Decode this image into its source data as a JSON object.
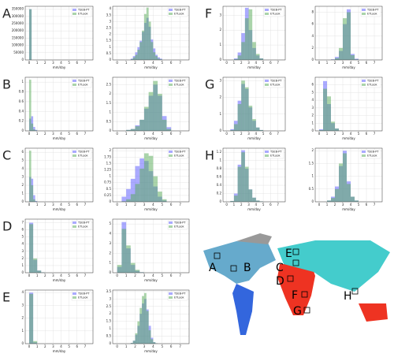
{
  "panel_labels": [
    "A",
    "B",
    "C",
    "D",
    "E",
    "F",
    "G",
    "H"
  ],
  "chart_data": [
    {
      "type": "histogram",
      "bins": [
        0,
        0.3
      ],
      "series": [
        {
          "name": "TSEB-PT",
          "color": "#5555ff",
          "values": [
            350000
          ]
        },
        {
          "name": "ETLook",
          "color": "#55aa55",
          "values": [
            350000
          ]
        }
      ],
      "xlim": [
        -0.5,
        8
      ],
      "ylim": [
        0,
        370000
      ],
      "xticks": [
        0,
        1,
        2,
        3,
        4,
        5,
        6,
        7
      ],
      "yticks": [
        0,
        50000,
        100000,
        150000,
        200000,
        250000,
        300000,
        350000
      ],
      "xlabel": "mm/day",
      "grid": true,
      "legend": "upper right"
    },
    {
      "type": "histogram",
      "bins": [
        1.5,
        1.75,
        2,
        2.25,
        2.5,
        2.75,
        3,
        3.25,
        3.5,
        3.75,
        4,
        4.25,
        4.5,
        4.75,
        5
      ],
      "series": [
        {
          "name": "TSEB-PT",
          "color": "#5555ff",
          "values": [
            0.1,
            0.3,
            0.6,
            1.0,
            1.5,
            2.2,
            2.9,
            3.3,
            2.6,
            1.6,
            0.9,
            0.4,
            0.2,
            0.1
          ]
        },
        {
          "name": "ETLook",
          "color": "#55aa55",
          "values": [
            0.05,
            0.2,
            0.4,
            0.8,
            1.4,
            2.3,
            3.6,
            4.1,
            3.0,
            1.4,
            0.6,
            0.3,
            0.1,
            0.05
          ]
        }
      ],
      "xlim": [
        -0.5,
        8
      ],
      "ylim": [
        0,
        4.2
      ],
      "xticks": [
        0,
        1,
        2,
        3,
        4,
        5,
        6,
        7
      ],
      "yticks": [
        0,
        0.5,
        1,
        1.5,
        2,
        2.5,
        3,
        3.5,
        4
      ],
      "xlabel": "mm/day",
      "grid": true,
      "legend": "upper right"
    },
    {
      "type": "histogram",
      "bins": [
        0,
        0.25,
        0.5,
        0.75,
        1
      ],
      "series": [
        {
          "name": "TSEB-PT",
          "color": "#5555ff",
          "values": [
            0.25,
            0.3,
            0.08,
            0.02
          ]
        },
        {
          "name": "ETLook",
          "color": "#55aa55",
          "values": [
            1.05,
            0.15,
            0.03,
            0.01
          ]
        }
      ],
      "xlim": [
        -0.5,
        8
      ],
      "ylim": [
        0,
        1.1
      ],
      "xticks": [
        0,
        1,
        2,
        3,
        4,
        5,
        6,
        7
      ],
      "yticks": [
        0,
        0.2,
        0.4,
        0.6,
        0.8,
        1
      ],
      "xlabel": "mm/day",
      "grid": true,
      "legend": "upper right"
    },
    {
      "type": "histogram",
      "bins": [
        1,
        1.5,
        2,
        2.5,
        3,
        3.5,
        4,
        4.5,
        5,
        5.5,
        6
      ],
      "series": [
        {
          "name": "TSEB-PT",
          "color": "#5555ff",
          "values": [
            0.05,
            0.1,
            0.3,
            0.6,
            1.2,
            1.9,
            2.5,
            1.9,
            0.8,
            0.2
          ]
        },
        {
          "name": "ETLook",
          "color": "#55aa55",
          "values": [
            0.05,
            0.1,
            0.25,
            0.6,
            1.3,
            2.1,
            2.7,
            2.0,
            0.6,
            0.1
          ]
        }
      ],
      "xlim": [
        -0.5,
        8
      ],
      "ylim": [
        0,
        2.9
      ],
      "xticks": [
        0,
        1,
        2,
        3,
        4,
        5,
        6,
        7
      ],
      "yticks": [
        0,
        0.5,
        1,
        1.5,
        2,
        2.5
      ],
      "xlabel": "mm/day",
      "grid": true,
      "legend": "upper right"
    },
    {
      "type": "histogram",
      "bins": [
        0,
        0.25,
        0.5,
        0.75,
        1
      ],
      "series": [
        {
          "name": "TSEB-PT",
          "color": "#5555ff",
          "values": [
            3.0,
            2.8,
            0.8,
            0.1
          ]
        },
        {
          "name": "ETLook",
          "color": "#55aa55",
          "values": [
            6.2,
            2.0,
            0.3,
            0.05
          ]
        }
      ],
      "xlim": [
        -0.5,
        8
      ],
      "ylim": [
        0,
        6.5
      ],
      "xticks": [
        0,
        1,
        2,
        3,
        4,
        5,
        6,
        7
      ],
      "yticks": [
        0,
        1,
        2,
        3,
        4,
        5,
        6
      ],
      "xlabel": "mm/day",
      "grid": true,
      "legend": "upper right"
    },
    {
      "type": "histogram",
      "bins": [
        0.5,
        1,
        1.5,
        2,
        2.5,
        3,
        3.5,
        4,
        4.5,
        5,
        5.5
      ],
      "series": [
        {
          "name": "TSEB-PT",
          "color": "#5555ff",
          "values": [
            0.2,
            0.5,
            0.9,
            1.4,
            1.7,
            1.6,
            1.2,
            0.6,
            0.2,
            0.05
          ]
        },
        {
          "name": "ETLook",
          "color": "#55aa55",
          "values": [
            0.02,
            0.1,
            0.3,
            0.7,
            1.3,
            1.9,
            1.8,
            1.0,
            0.4,
            0.1
          ]
        }
      ],
      "xlim": [
        -0.5,
        8
      ],
      "ylim": [
        0,
        2.1
      ],
      "xticks": [
        0,
        1,
        2,
        3,
        4,
        5,
        6,
        7
      ],
      "yticks": [
        0,
        0.25,
        0.5,
        0.75,
        1,
        1.25,
        1.5,
        1.75,
        2
      ],
      "xlabel": "mm/day",
      "grid": true,
      "legend": "upper right"
    },
    {
      "type": "histogram",
      "bins": [
        0,
        0.5,
        1,
        1.5,
        2
      ],
      "series": [
        {
          "name": "TSEB-PT",
          "color": "#5555ff",
          "values": [
            7.0,
            1.8,
            0.3,
            0.05
          ]
        },
        {
          "name": "ETLook",
          "color": "#55aa55",
          "values": [
            6.8,
            2.0,
            0.3,
            0.05
          ]
        }
      ],
      "xlim": [
        -0.5,
        8
      ],
      "ylim": [
        0,
        7.5
      ],
      "xticks": [
        0,
        1,
        2,
        3,
        4,
        5,
        6,
        7
      ],
      "yticks": [
        0,
        1,
        2,
        3,
        4,
        5,
        6,
        7
      ],
      "xlabel": "mm/day",
      "grid": true,
      "legend": "upper right"
    },
    {
      "type": "histogram",
      "bins": [
        0,
        0.5,
        1,
        1.5,
        2,
        2.5,
        3
      ],
      "series": [
        {
          "name": "TSEB-PT",
          "color": "#5555ff",
          "values": [
            0.6,
            5.2,
            2.5,
            0.8,
            0.2,
            0.05
          ]
        },
        {
          "name": "ETLook",
          "color": "#55aa55",
          "values": [
            0.8,
            4.5,
            2.8,
            1.0,
            0.3,
            0.05
          ]
        }
      ],
      "xlim": [
        -0.5,
        8
      ],
      "ylim": [
        0,
        5.5
      ],
      "xticks": [
        0,
        1,
        2,
        3,
        4,
        5,
        6,
        7
      ],
      "yticks": [
        0,
        1,
        2,
        3,
        4,
        5
      ],
      "xlabel": "mm/day",
      "grid": true,
      "legend": "upper right"
    },
    {
      "type": "histogram",
      "bins": [
        0,
        0.5,
        1
      ],
      "series": [
        {
          "name": "TSEB-PT",
          "color": "#5555ff",
          "values": [
            4.0,
            0.1
          ]
        },
        {
          "name": "ETLook",
          "color": "#55aa55",
          "values": [
            3.9,
            0.2
          ]
        }
      ],
      "xlim": [
        -0.5,
        8
      ],
      "ylim": [
        0,
        4.2
      ],
      "xticks": [
        0,
        1,
        2,
        3,
        4,
        5,
        6,
        7
      ],
      "yticks": [
        0,
        1,
        2,
        3,
        4
      ],
      "xlabel": "mm/day",
      "grid": true,
      "legend": "upper right"
    },
    {
      "type": "histogram",
      "bins": [
        1.5,
        1.75,
        2,
        2.25,
        2.5,
        2.75,
        3,
        3.25,
        3.5,
        3.75,
        4,
        4.25,
        4.5
      ],
      "series": [
        {
          "name": "TSEB-PT",
          "color": "#5555ff",
          "values": [
            0.05,
            0.2,
            0.6,
            1.2,
            2.0,
            2.7,
            3.0,
            2.3,
            1.2,
            0.4,
            0.1,
            0.02
          ]
        },
        {
          "name": "ETLook",
          "color": "#55aa55",
          "values": [
            0.05,
            0.2,
            0.7,
            1.5,
            2.4,
            3.2,
            3.4,
            2.2,
            0.9,
            0.3,
            0.1,
            0.02
          ]
        }
      ],
      "xlim": [
        -0.5,
        8
      ],
      "ylim": [
        0,
        3.6
      ],
      "xticks": [
        0,
        1,
        2,
        3,
        4,
        5,
        6,
        7
      ],
      "yticks": [
        0,
        0.5,
        1,
        1.5,
        2,
        2.5,
        3,
        3.5
      ],
      "xlabel": "mm/day",
      "grid": true,
      "legend": "upper right"
    },
    {
      "type": "histogram",
      "bins": [
        1,
        1.5,
        2,
        2.5,
        3,
        3.5,
        4,
        4.5,
        5
      ],
      "series": [
        {
          "name": "TSEB-PT",
          "color": "#5555ff",
          "values": [
            0.1,
            0.5,
            1.8,
            3.5,
            2.0,
            0.8,
            0.3,
            0.1
          ]
        },
        {
          "name": "ETLook",
          "color": "#55aa55",
          "values": [
            0.05,
            0.3,
            1.2,
            2.8,
            3.4,
            1.2,
            0.4,
            0.1
          ]
        }
      ],
      "xlim": [
        -0.5,
        8
      ],
      "ylim": [
        0,
        3.6
      ],
      "xticks": [
        0,
        1,
        2,
        3,
        4,
        5,
        6,
        7
      ],
      "yticks": [
        0,
        1,
        2,
        3
      ],
      "xlabel": "mm/day",
      "grid": true,
      "legend": "upper right"
    },
    {
      "type": "histogram",
      "bins": [
        1.5,
        2,
        2.5,
        3,
        3.5,
        4,
        4.5,
        5
      ],
      "series": [
        {
          "name": "TSEB-PT",
          "color": "#5555ff",
          "values": [
            0.1,
            0.5,
            1.5,
            6.0,
            8.5,
            1.0,
            0.2
          ]
        },
        {
          "name": "ETLook",
          "color": "#55aa55",
          "values": [
            0.05,
            0.3,
            2.0,
            7.0,
            8.0,
            0.8,
            0.1
          ]
        }
      ],
      "xlim": [
        -0.5,
        8
      ],
      "ylim": [
        0,
        9
      ],
      "xticks": [
        0,
        1,
        2,
        3,
        4,
        5,
        6,
        7
      ],
      "yticks": [
        0,
        2,
        4,
        6,
        8
      ],
      "xlabel": "mm/day",
      "grid": true,
      "legend": "upper right"
    },
    {
      "type": "histogram",
      "bins": [
        0.5,
        1,
        1.5,
        2,
        2.5,
        3,
        3.5,
        4,
        4.5,
        5
      ],
      "series": [
        {
          "name": "TSEB-PT",
          "color": "#5555ff",
          "values": [
            0.1,
            0.6,
            1.8,
            2.8,
            2.5,
            1.4,
            0.6,
            0.2,
            0.05
          ]
        },
        {
          "name": "ETLook",
          "color": "#55aa55",
          "values": [
            0.05,
            0.4,
            1.6,
            3.0,
            2.6,
            1.5,
            0.7,
            0.2,
            0.05
          ]
        }
      ],
      "xlim": [
        -0.5,
        8
      ],
      "ylim": [
        0,
        3.2
      ],
      "xticks": [
        0,
        1,
        2,
        3,
        4,
        5,
        6,
        7
      ],
      "yticks": [
        0,
        1,
        2,
        3
      ],
      "xlabel": "mm/day",
      "grid": true,
      "legend": "upper right"
    },
    {
      "type": "histogram",
      "bins": [
        0,
        0.5,
        1,
        1.5,
        2,
        2.5,
        3
      ],
      "series": [
        {
          "name": "TSEB-PT",
          "color": "#5555ff",
          "values": [
            0.2,
            6.5,
            3.5,
            1.0,
            0.3,
            0.05
          ]
        },
        {
          "name": "ETLook",
          "color": "#55aa55",
          "values": [
            0.1,
            5.5,
            4.5,
            1.2,
            0.3,
            0.05
          ]
        }
      ],
      "xlim": [
        -0.5,
        8
      ],
      "ylim": [
        0,
        7
      ],
      "xticks": [
        0,
        1,
        2,
        3,
        4,
        5,
        6,
        7
      ],
      "yticks": [
        0,
        1,
        2,
        3,
        4,
        5,
        6
      ],
      "xlabel": "mm/day",
      "grid": true,
      "legend": "upper right"
    },
    {
      "type": "histogram",
      "bins": [
        0.5,
        1,
        1.5,
        2,
        2.5,
        3,
        3.5,
        4,
        4.5,
        5
      ],
      "series": [
        {
          "name": "TSEB-PT",
          "color": "#5555ff",
          "values": [
            0.02,
            0.2,
            0.9,
            1.25,
            0.8,
            0.3,
            0.1,
            0.03,
            0.01
          ]
        },
        {
          "name": "ETLook",
          "color": "#55aa55",
          "values": [
            0.02,
            0.15,
            0.85,
            1.2,
            0.85,
            0.3,
            0.1,
            0.03,
            0.01
          ]
        }
      ],
      "xlim": [
        -0.5,
        8
      ],
      "ylim": [
        0,
        1.3
      ],
      "xticks": [
        0,
        1,
        2,
        3,
        4,
        5,
        6,
        7
      ],
      "yticks": [
        0,
        0.2,
        0.4,
        0.6,
        0.8,
        1,
        1.2
      ],
      "xlabel": "mm/day",
      "grid": true,
      "legend": "upper right"
    },
    {
      "type": "histogram",
      "bins": [
        1,
        1.5,
        2,
        2.5,
        3,
        3.5,
        4,
        4.5,
        5
      ],
      "series": [
        {
          "name": "TSEB-PT",
          "color": "#5555ff",
          "values": [
            0.05,
            0.2,
            0.6,
            1.4,
            2.0,
            0.8,
            0.2,
            0.05
          ]
        },
        {
          "name": "ETLook",
          "color": "#55aa55",
          "values": [
            0.05,
            0.15,
            0.5,
            1.5,
            1.9,
            0.7,
            0.2,
            0.05
          ]
        }
      ],
      "xlim": [
        -0.5,
        8
      ],
      "ylim": [
        0,
        2.1
      ],
      "xticks": [
        0,
        1,
        2,
        3,
        4,
        5,
        6,
        7
      ],
      "yticks": [
        0,
        0.5,
        1,
        1.5,
        2
      ],
      "xlabel": "mm/day",
      "grid": true,
      "legend": "upper right"
    }
  ],
  "map": {
    "labels": [
      "A",
      "B",
      "C",
      "D",
      "E",
      "F",
      "G",
      "H"
    ]
  }
}
